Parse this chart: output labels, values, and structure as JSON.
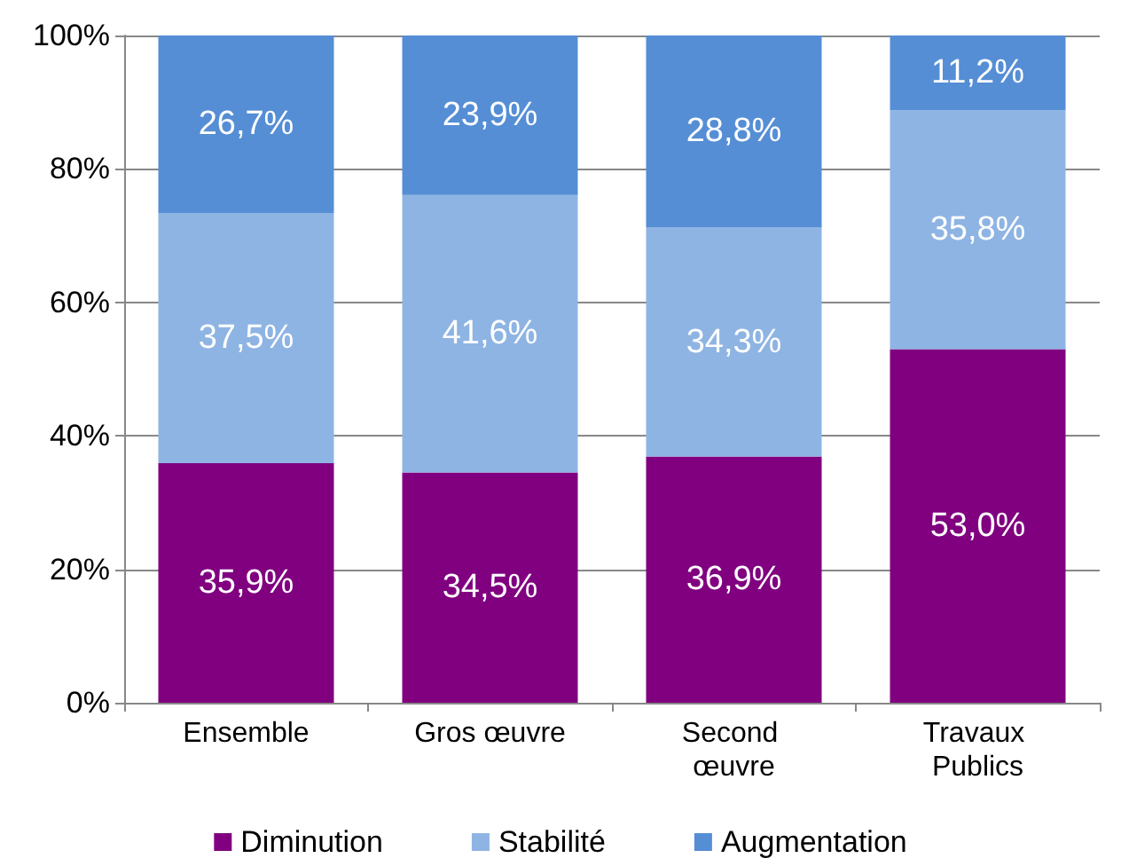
{
  "chart_data": {
    "type": "bar",
    "stacked": true,
    "categories": [
      "Ensemble",
      "Gros œuvre",
      "Second œuvre",
      "Travaux Publics"
    ],
    "series": [
      {
        "name": "Diminution",
        "color": "#800080",
        "values": [
          35.9,
          34.5,
          36.9,
          53.0
        ],
        "value_labels": [
          "35,9%",
          "34,5%",
          "36,9%",
          "53,0%"
        ]
      },
      {
        "name": "Stabilité",
        "color": "#8eb4e3",
        "values": [
          37.5,
          41.6,
          34.3,
          35.8
        ],
        "value_labels": [
          "37,5%",
          "41,6%",
          "34,3%",
          "35,8%"
        ]
      },
      {
        "name": "Augmentation",
        "color": "#558ed5",
        "values": [
          26.7,
          23.9,
          28.8,
          11.2
        ],
        "value_labels": [
          "26,7%",
          "23,9%",
          "28,8%",
          "11,2%"
        ]
      }
    ],
    "ylim": [
      0,
      100
    ],
    "yticks": [
      {
        "value": 0,
        "label": "0%"
      },
      {
        "value": 20,
        "label": "20%"
      },
      {
        "value": 40,
        "label": "40%"
      },
      {
        "value": 60,
        "label": "60%"
      },
      {
        "value": 80,
        "label": "80%"
      },
      {
        "value": 100,
        "label": "100%"
      }
    ],
    "grid": "y",
    "legend": "bottom"
  }
}
